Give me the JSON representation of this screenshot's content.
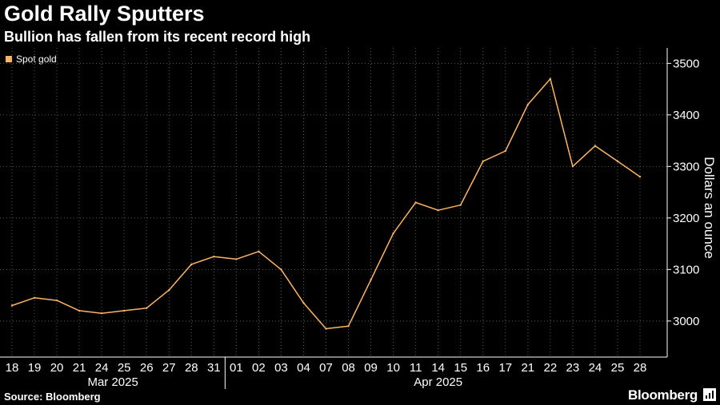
{
  "title": "Gold Rally Sputters",
  "subtitle": "Bullion has fallen from its recent record high",
  "source": "Source: Bloomberg",
  "brand": "Bloomberg",
  "colors": {
    "background": "#000000",
    "series": "#fdb462",
    "grid": "#5a5a5a"
  },
  "chart_data": {
    "type": "line",
    "title": "Gold Rally Sputters",
    "subtitle": "Bullion has fallen from its recent record high",
    "ylabel": "Dollars an ounce",
    "ylim": [
      2930,
      3530
    ],
    "yticks": [
      3000,
      3100,
      3200,
      3300,
      3400,
      3500
    ],
    "grid": true,
    "legend": "top-left",
    "x_tick_labels": [
      "18",
      "19",
      "20",
      "21",
      "24",
      "25",
      "26",
      "27",
      "28",
      "31",
      "01",
      "02",
      "03",
      "04",
      "07",
      "08",
      "09",
      "10",
      "11",
      "14",
      "15",
      "16",
      "17",
      "21",
      "22",
      "23",
      "24",
      "25",
      "28"
    ],
    "x_group_labels": [
      "Mar 2025",
      "Apr 2025"
    ],
    "series": [
      {
        "name": "Spot gold",
        "x": [
          "2025-03-18",
          "2025-03-19",
          "2025-03-20",
          "2025-03-21",
          "2025-03-24",
          "2025-03-25",
          "2025-03-26",
          "2025-03-27",
          "2025-03-28",
          "2025-03-31",
          "2025-04-01",
          "2025-04-02",
          "2025-04-03",
          "2025-04-04",
          "2025-04-07",
          "2025-04-08",
          "2025-04-09",
          "2025-04-10",
          "2025-04-11",
          "2025-04-14",
          "2025-04-15",
          "2025-04-16",
          "2025-04-17",
          "2025-04-21",
          "2025-04-22",
          "2025-04-23",
          "2025-04-24",
          "2025-04-25",
          "2025-04-28"
        ],
        "values": [
          3030,
          3045,
          3040,
          3020,
          3015,
          3020,
          3025,
          3060,
          3110,
          3125,
          3120,
          3135,
          3100,
          3035,
          2985,
          2990,
          3080,
          3170,
          3230,
          3215,
          3225,
          3310,
          3330,
          3420,
          3470,
          3300,
          3340,
          3310,
          3280
        ]
      }
    ]
  }
}
